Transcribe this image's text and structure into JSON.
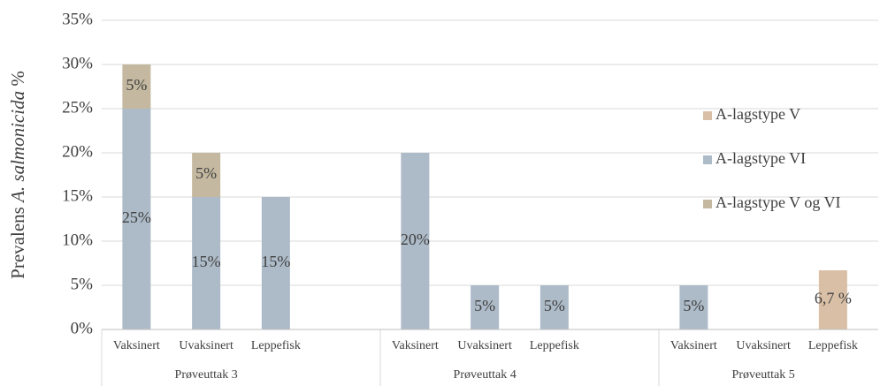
{
  "chart_data": {
    "type": "stacked_bar",
    "ylabel_parts": [
      "Prevalens ",
      "A. salmonicida",
      " %"
    ],
    "groups": [
      {
        "label": "Prøveuttak 3",
        "categories": [
          "Vaksinert",
          "Uvaksinert",
          "Leppefisk"
        ]
      },
      {
        "label": "Prøveuttak 4",
        "categories": [
          "Vaksinert",
          "Uvaksinert",
          "Leppefisk"
        ]
      },
      {
        "label": "Prøveuttak 5",
        "categories": [
          "Vaksinert",
          "Uvaksinert",
          "Leppefisk"
        ]
      }
    ],
    "series": [
      {
        "name": "A-lagstype V",
        "color": "#d9bfa6",
        "values": [
          null,
          null,
          null,
          null,
          null,
          null,
          null,
          null,
          6.7
        ],
        "value_labels": [
          null,
          null,
          null,
          null,
          null,
          null,
          null,
          null,
          "6,7 %"
        ]
      },
      {
        "name": "A-lagstype VI",
        "color": "#adbbc8",
        "values": [
          25,
          15,
          15,
          20,
          5,
          5,
          5,
          null,
          null
        ],
        "value_labels": [
          "25%",
          "15%",
          "15%",
          "20%",
          "5%",
          "5%",
          "5%",
          null,
          null
        ]
      },
      {
        "name": "A-lagstype V og VI",
        "color": "#c4b9a0",
        "values": [
          5,
          5,
          null,
          null,
          null,
          null,
          null,
          null,
          null
        ],
        "value_labels": [
          "5%",
          "5%",
          null,
          null,
          null,
          null,
          null,
          null,
          null
        ]
      }
    ],
    "ylim": [
      0,
      35
    ],
    "yticks": [
      {
        "value": 0,
        "label": "0%"
      },
      {
        "value": 5,
        "label": "5%"
      },
      {
        "value": 10,
        "label": "10%"
      },
      {
        "value": 15,
        "label": "15%"
      },
      {
        "value": 20,
        "label": "20%"
      },
      {
        "value": 25,
        "label": "25%"
      },
      {
        "value": 30,
        "label": "30%"
      },
      {
        "value": 35,
        "label": "35%"
      }
    ],
    "grid": true,
    "legend": "right"
  }
}
